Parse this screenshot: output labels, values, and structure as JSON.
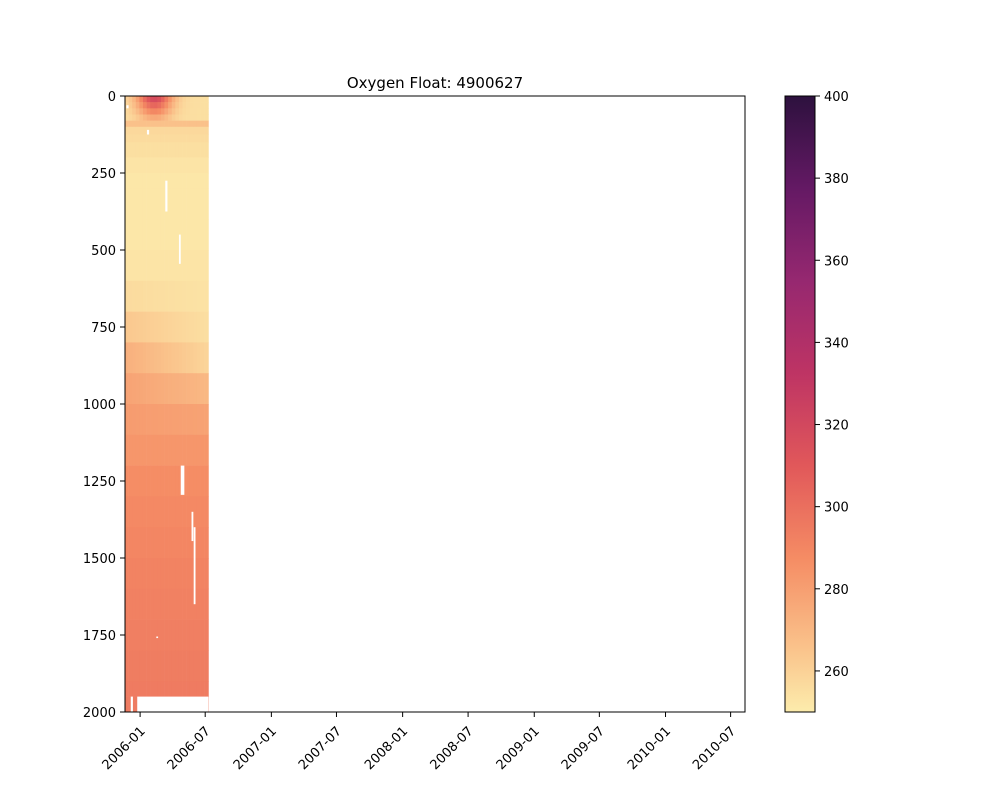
{
  "chart_data": {
    "type": "heatmap",
    "title": "Oxygen Float: 4900627",
    "xlabel": "",
    "ylabel": "",
    "x_axis": {
      "type": "date",
      "range": [
        "2005-11-20",
        "2010-08-10"
      ],
      "ticks": [
        "2006-01",
        "2006-07",
        "2007-01",
        "2007-07",
        "2008-01",
        "2008-07",
        "2009-01",
        "2009-07",
        "2010-01",
        "2010-07"
      ],
      "tick_dates": [
        "2006-01-01",
        "2006-07-01",
        "2007-01-01",
        "2007-07-01",
        "2008-01-01",
        "2008-07-01",
        "2009-01-01",
        "2009-07-01",
        "2010-01-01",
        "2010-07-01"
      ],
      "tick_rotation_deg": 45
    },
    "y_axis": {
      "range": [
        0,
        2000
      ],
      "inverted": true,
      "ticks": [
        0,
        250,
        500,
        750,
        1000,
        1250,
        1500,
        1750,
        2000
      ]
    },
    "colorbar": {
      "colormap": "magma_r",
      "range": [
        250,
        400
      ],
      "ticks": [
        260,
        280,
        300,
        320,
        340,
        360,
        380,
        400
      ]
    },
    "data_extent": {
      "date_start": "2005-11-20",
      "date_end": "2006-07-10",
      "depth_min": 0,
      "depth_max": 2000
    },
    "profile_dates": [
      "2005-11-20",
      "2005-11-30",
      "2005-12-10",
      "2005-12-20",
      "2005-12-30",
      "2006-01-09",
      "2006-01-19",
      "2006-01-29",
      "2006-02-08",
      "2006-02-18",
      "2006-02-28",
      "2006-03-10",
      "2006-03-20",
      "2006-03-30",
      "2006-04-09",
      "2006-04-19",
      "2006-04-29",
      "2006-05-09",
      "2006-05-19",
      "2006-05-29",
      "2006-06-08",
      "2006-06-18",
      "2006-06-28"
    ],
    "depth_levels": [
      0,
      20,
      40,
      60,
      80,
      100,
      125,
      150,
      200,
      250,
      300,
      400,
      500,
      600,
      700,
      800,
      900,
      1000,
      1100,
      1200,
      1300,
      1400,
      1500,
      1600,
      1700,
      1800,
      1900,
      1950
    ],
    "oxygen_profile_mean": [
      {
        "depth": 0,
        "oxygen": 315
      },
      {
        "depth": 50,
        "oxygen": 300
      },
      {
        "depth": 100,
        "oxygen": 258
      },
      {
        "depth": 250,
        "oxygen": 252
      },
      {
        "depth": 500,
        "oxygen": 252
      },
      {
        "depth": 700,
        "oxygen": 256
      },
      {
        "depth": 850,
        "oxygen": 266
      },
      {
        "depth": 1000,
        "oxygen": 278
      },
      {
        "depth": 1250,
        "oxygen": 287
      },
      {
        "depth": 1500,
        "oxygen": 291
      },
      {
        "depth": 1750,
        "oxygen": 293
      },
      {
        "depth": 1950,
        "oxygen": 295
      }
    ],
    "surface_max_oxygen": 325,
    "gaps": [
      {
        "date_start": "2005-12-06",
        "date_end": "2005-12-12",
        "depth_min": 1950,
        "depth_max": 2000
      },
      {
        "date_start": "2005-12-24",
        "date_end": "2006-07-10",
        "depth_min": 1950,
        "depth_max": 2000
      },
      {
        "date_start": "2006-02-15",
        "date_end": "2006-02-20",
        "depth_min": 1755,
        "depth_max": 1760
      },
      {
        "date_start": "2006-03-12",
        "date_end": "2006-03-18",
        "depth_min": 275,
        "depth_max": 375
      },
      {
        "date_start": "2006-04-19",
        "date_end": "2006-04-24",
        "depth_min": 450,
        "depth_max": 545
      },
      {
        "date_start": "2006-04-24",
        "date_end": "2006-05-04",
        "depth_min": 1200,
        "depth_max": 1295
      },
      {
        "date_start": "2006-05-24",
        "date_end": "2006-05-29",
        "depth_min": 1350,
        "depth_max": 1445
      },
      {
        "date_start": "2006-05-30",
        "date_end": "2006-06-04",
        "depth_min": 1400,
        "depth_max": 1650
      },
      {
        "date_start": "2006-01-20",
        "date_end": "2006-01-26",
        "depth_min": 110,
        "depth_max": 125
      },
      {
        "date_start": "2005-11-24",
        "date_end": "2005-11-30",
        "depth_min": 30,
        "depth_max": 40
      }
    ]
  }
}
